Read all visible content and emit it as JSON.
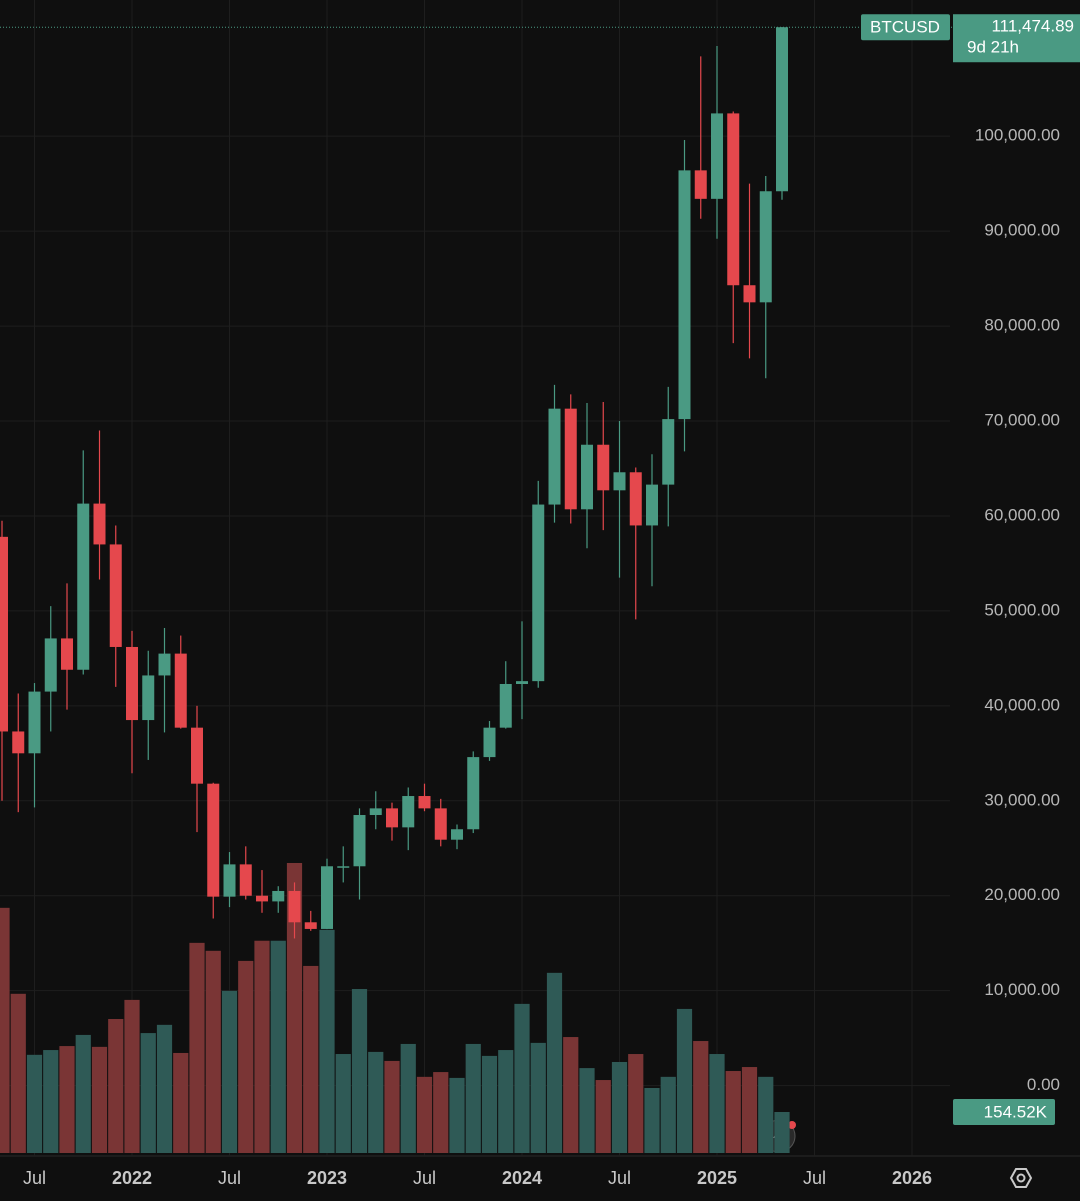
{
  "chart_data": {
    "type": "candlestick",
    "title": "BTCUSD",
    "countdown": "9d 21h",
    "x": [
      "2021-05",
      "2021-06",
      "2021-07",
      "2021-08",
      "2021-09",
      "2021-10",
      "2021-11",
      "2021-12",
      "2022-01",
      "2022-02",
      "2022-03",
      "2022-04",
      "2022-05",
      "2022-06",
      "2022-07",
      "2022-08",
      "2022-09",
      "2022-10",
      "2022-11",
      "2022-12",
      "2023-01",
      "2023-02",
      "2023-03",
      "2023-04",
      "2023-05",
      "2023-06",
      "2023-07",
      "2023-08",
      "2023-09",
      "2023-10",
      "2023-11",
      "2023-12",
      "2024-01",
      "2024-02",
      "2024-03",
      "2024-04",
      "2024-05",
      "2024-06",
      "2024-07",
      "2024-08",
      "2024-09",
      "2024-10",
      "2024-11",
      "2024-12",
      "2025-01",
      "2025-02",
      "2025-03",
      "2025-04",
      "2025-05"
    ],
    "open": [
      57800,
      37300,
      35000,
      41500,
      47100,
      43800,
      61300,
      57000,
      46200,
      38500,
      43200,
      45500,
      37700,
      31800,
      19900,
      23300,
      20000,
      19400,
      20500,
      17200,
      16500,
      23100,
      23100,
      28500,
      29200,
      27200,
      30500,
      29200,
      25900,
      27000,
      34600,
      37700,
      42300,
      42600,
      61200,
      71300,
      60700,
      67500,
      62700,
      64600,
      59000,
      63300,
      70200,
      96400,
      93400,
      102400,
      84300,
      82500,
      94200
    ],
    "high": [
      59500,
      41300,
      42400,
      50500,
      52900,
      66900,
      69000,
      59000,
      47900,
      45800,
      48200,
      47400,
      40000,
      31900,
      24600,
      25200,
      22700,
      21000,
      21400,
      18400,
      23900,
      25200,
      29200,
      31000,
      29800,
      31400,
      31800,
      30200,
      27500,
      35200,
      38400,
      44700,
      48900,
      63700,
      73800,
      72800,
      71900,
      72000,
      70000,
      65100,
      66500,
      73600,
      99600,
      108400,
      109500,
      102600,
      95000,
      95800,
      111500
    ],
    "low": [
      30000,
      28800,
      29300,
      37300,
      39600,
      43300,
      53300,
      42000,
      32900,
      34300,
      37200,
      37600,
      26700,
      17600,
      18800,
      19600,
      18200,
      18200,
      15500,
      16300,
      16500,
      21400,
      19600,
      27000,
      25800,
      24800,
      28900,
      25200,
      24900,
      26600,
      34200,
      37600,
      38600,
      41900,
      59300,
      59200,
      56600,
      58500,
      53500,
      49100,
      52600,
      58900,
      66800,
      91300,
      89200,
      78200,
      76600,
      74500,
      93300
    ],
    "close": [
      37300,
      35000,
      41500,
      47100,
      43800,
      61300,
      57000,
      46200,
      38500,
      43200,
      45500,
      37700,
      31800,
      19900,
      23300,
      20000,
      19400,
      20500,
      17200,
      16500,
      23100,
      23100,
      28500,
      29200,
      27200,
      30500,
      29200,
      25900,
      27000,
      34600,
      37700,
      42300,
      42600,
      61200,
      71300,
      60700,
      67500,
      62700,
      64600,
      59000,
      63300,
      70200,
      96400,
      93400,
      102400,
      84300,
      82500,
      94200,
      111474.89
    ],
    "close_labels": [
      null,
      null,
      null,
      null,
      null,
      null,
      null,
      null,
      null,
      null,
      null,
      null,
      null,
      null,
      null,
      null,
      null,
      null,
      null,
      null,
      null,
      null,
      null,
      null,
      null,
      null,
      null,
      null,
      null,
      null,
      null,
      null,
      null,
      null,
      null,
      null,
      null,
      null,
      null,
      null,
      null,
      null,
      null,
      null,
      null,
      null,
      null,
      null,
      "111,474.89"
    ],
    "volume": [
      924,
      600,
      370,
      388,
      403,
      445,
      400,
      505,
      577,
      452,
      483,
      377,
      792,
      762,
      611,
      724,
      800,
      800,
      1093,
      705,
      841,
      373,
      618,
      381,
      347,
      411,
      287,
      305,
      283,
      411,
      366,
      388,
      562,
      415,
      679,
      437,
      320,
      275,
      343,
      373,
      245,
      287,
      543,
      422,
      373,
      309,
      324,
      287,
      154.52
    ],
    "volume_labels": [
      null,
      null,
      null,
      null,
      null,
      null,
      null,
      null,
      null,
      null,
      null,
      null,
      null,
      null,
      null,
      null,
      null,
      null,
      null,
      null,
      null,
      null,
      null,
      null,
      null,
      null,
      null,
      null,
      null,
      null,
      null,
      null,
      null,
      null,
      null,
      null,
      null,
      null,
      null,
      null,
      null,
      null,
      null,
      null,
      null,
      null,
      null,
      null,
      "154.52K"
    ],
    "up_color": "#4a9a83",
    "down_color": "#e5484d",
    "volume_up_color": "#2f5a56",
    "volume_down_color": "#7a3535",
    "ylim": [
      -7100,
      111500
    ],
    "yticks": [
      {
        "value": 0,
        "label": "0.00"
      },
      {
        "value": 10000,
        "label": "10,000.00"
      },
      {
        "value": 20000,
        "label": "20,000.00"
      },
      {
        "value": 30000,
        "label": "30,000.00"
      },
      {
        "value": 40000,
        "label": "40,000.00"
      },
      {
        "value": 50000,
        "label": "50,000.00"
      },
      {
        "value": 60000,
        "label": "60,000.00"
      },
      {
        "value": 70000,
        "label": "70,000.00"
      },
      {
        "value": 80000,
        "label": "80,000.00"
      },
      {
        "value": 90000,
        "label": "90,000.00"
      },
      {
        "value": 100000,
        "label": "100,000.00"
      }
    ],
    "xticks": [
      {
        "value": "2021-07",
        "label": "Jul"
      },
      {
        "value": "2022-01",
        "label": "2022"
      },
      {
        "value": "2022-07",
        "label": "Jul"
      },
      {
        "value": "2023-01",
        "label": "2023"
      },
      {
        "value": "2023-07",
        "label": "Jul"
      },
      {
        "value": "2024-01",
        "label": "2024"
      },
      {
        "value": "2024-07",
        "label": "Jul"
      },
      {
        "value": "2025-01",
        "label": "2025"
      },
      {
        "value": "2025-07",
        "label": "Jul"
      },
      {
        "value": "2026-01",
        "label": "2026"
      }
    ],
    "grid": true
  }
}
